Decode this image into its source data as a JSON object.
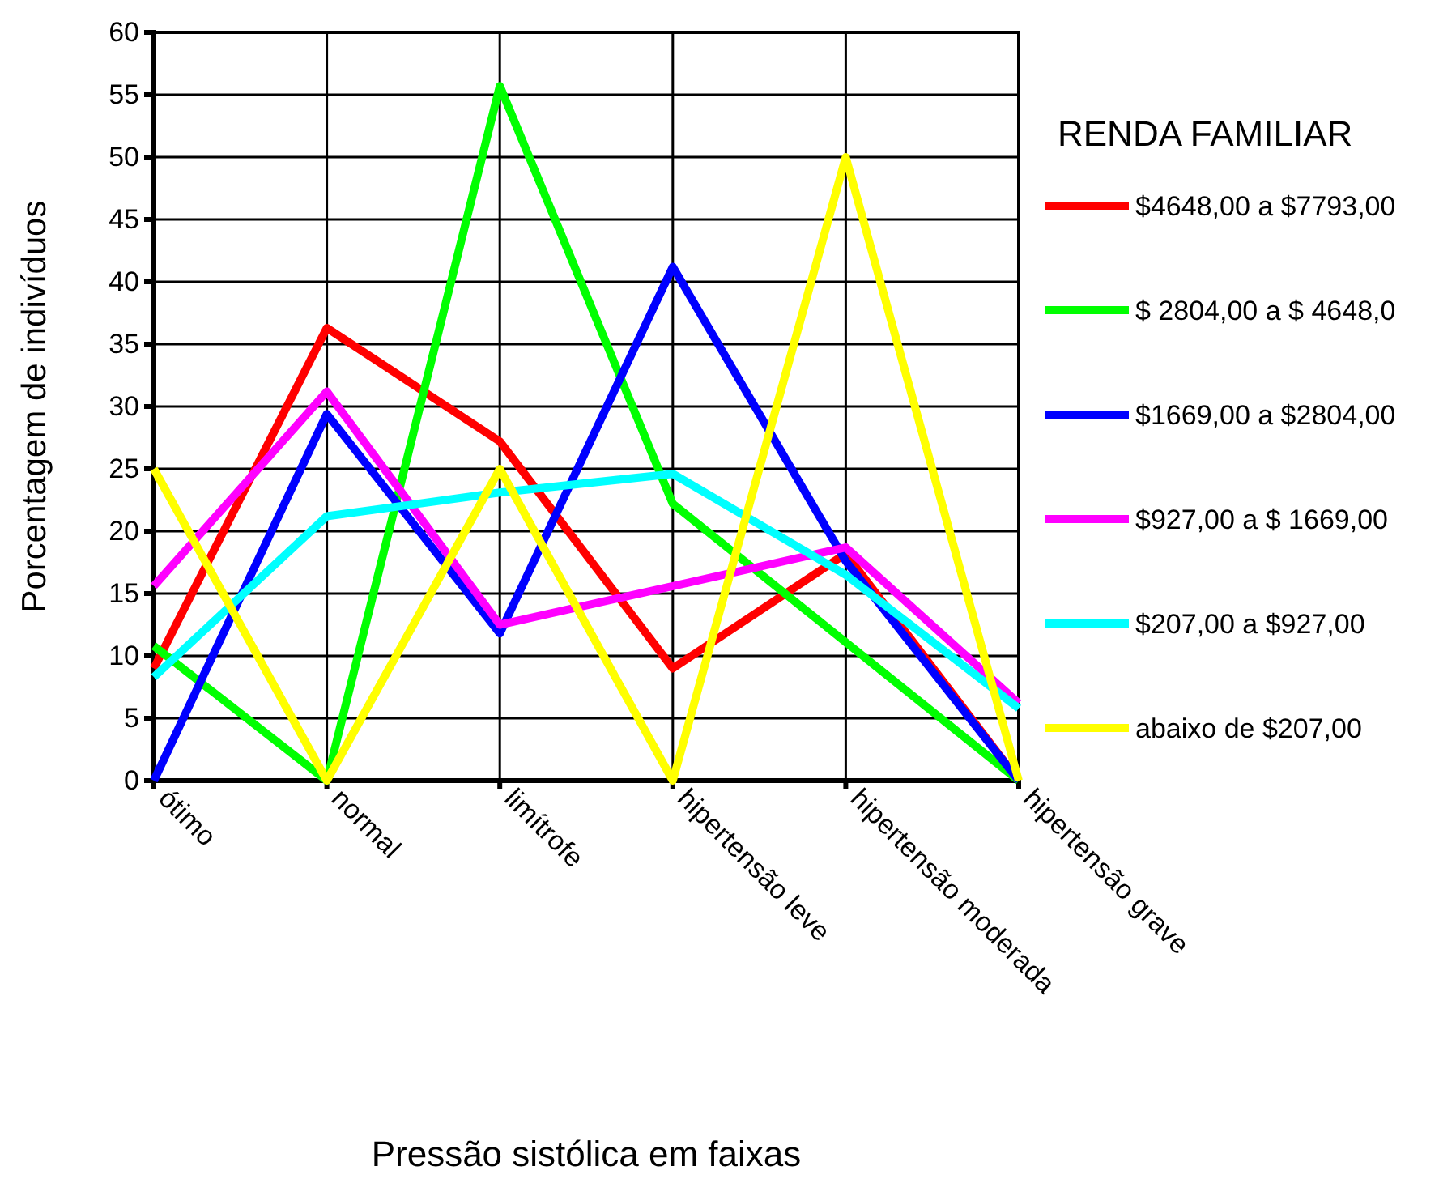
{
  "chart_data": {
    "type": "line",
    "xlabel": "Pressão sistólica em faixas",
    "ylabel": "Porcentagem de indivíduos",
    "legend_title": "RENDA FAMILIAR",
    "categories": [
      "ótimo",
      "normal",
      "limítrofe",
      "hipertensão leve",
      "hipertensão moderada",
      "hipertensão grave"
    ],
    "series": [
      {
        "name": "$4648,00 a $7793,00",
        "color": "#ff0000",
        "values": [
          9,
          36.3,
          27.2,
          9,
          18.2,
          0
        ]
      },
      {
        "name": "$ 2804,00 a $ 4648,0",
        "color": "#00ff00",
        "values": [
          10.8,
          0,
          55.7,
          22.2,
          11.1,
          0
        ]
      },
      {
        "name": "$1669,00 a $2804,00",
        "color": "#0000ff",
        "values": [
          0,
          29.4,
          11.8,
          41.2,
          17.6,
          0
        ]
      },
      {
        "name": "$927,00 a $ 1669,00",
        "color": "#ff00ff",
        "values": [
          15.6,
          31.2,
          12.5,
          15.6,
          18.7,
          6.2
        ]
      },
      {
        "name": "$207,00 a $927,00",
        "color": "#00ffff",
        "values": [
          8.3,
          21.2,
          23.1,
          24.6,
          16.5,
          5.8
        ]
      },
      {
        "name": "abaixo de $207,00",
        "color": "#ffff00",
        "values": [
          25,
          0,
          25,
          0,
          50,
          0
        ]
      }
    ],
    "ylim": [
      0,
      60
    ],
    "yticks": [
      0,
      5,
      10,
      15,
      20,
      25,
      30,
      35,
      40,
      45,
      50,
      55,
      60
    ],
    "grid": true,
    "legend": "right",
    "marker": "none",
    "line_style": "solid"
  }
}
